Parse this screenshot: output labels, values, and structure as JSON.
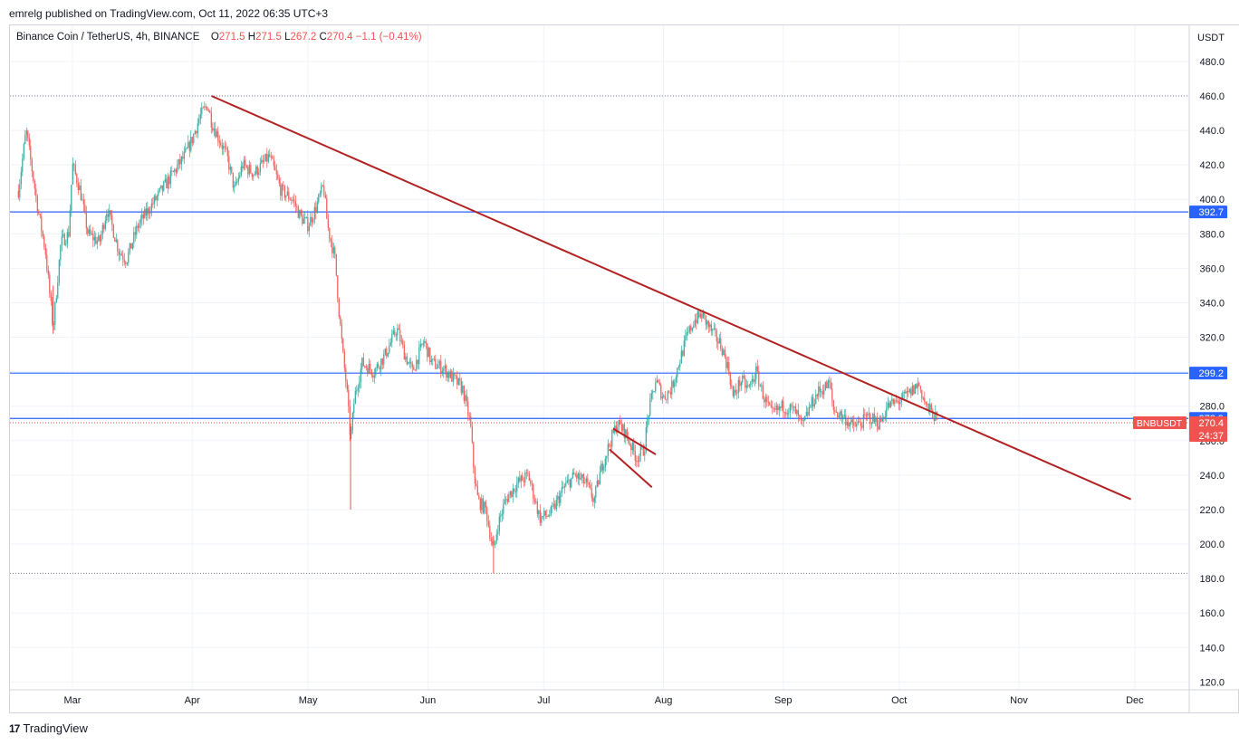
{
  "header": {
    "published": "emrelg published on TradingView.com, Oct 11, 2022 06:35 UTC+3"
  },
  "legend": {
    "symbol": "Binance Coin / TetherUS, 4h, BINANCE",
    "o_label": "O",
    "o_value": "271.5",
    "h_label": "H",
    "h_value": "271.5",
    "l_label": "L",
    "l_value": "267.2",
    "c_label": "C",
    "c_value": "270.4",
    "change": "−1.1 (−0.41%)"
  },
  "footer": {
    "brand": "TradingView"
  },
  "colors": {
    "up": "#26a69a",
    "down": "#ef5350",
    "trendline": "#b22222",
    "hline": "#2962ff",
    "axis_label_blue": "#2962ff",
    "price_label": "#ef5350"
  },
  "chart_data": {
    "type": "candlestick",
    "title": "Binance Coin / TetherUS, 4h, BINANCE",
    "currency": "USDT",
    "ylim": [
      110,
      495
    ],
    "y_ticks": [
      "120.0",
      "140.0",
      "160.0",
      "180.0",
      "200.0",
      "220.0",
      "240.0",
      "260.0",
      "280.0",
      "300.0",
      "320.0",
      "340.0",
      "360.0",
      "380.0",
      "400.0",
      "420.0",
      "440.0",
      "460.0",
      "480.0"
    ],
    "x_ticks": [
      "Mar",
      "Apr",
      "May",
      "Jun",
      "Jul",
      "Aug",
      "Sep",
      "Oct",
      "Nov",
      "Dec"
    ],
    "price_path": [
      {
        "t": "2022-02-15",
        "p": 405
      },
      {
        "t": "2022-02-17",
        "p": 440
      },
      {
        "t": "2022-02-20",
        "p": 395
      },
      {
        "t": "2022-02-22",
        "p": 370
      },
      {
        "t": "2022-02-24",
        "p": 325
      },
      {
        "t": "2022-02-26",
        "p": 375
      },
      {
        "t": "2022-02-28",
        "p": 380
      },
      {
        "t": "2022-03-01",
        "p": 420
      },
      {
        "t": "2022-03-03",
        "p": 405
      },
      {
        "t": "2022-03-05",
        "p": 380
      },
      {
        "t": "2022-03-08",
        "p": 375
      },
      {
        "t": "2022-03-10",
        "p": 395
      },
      {
        "t": "2022-03-13",
        "p": 370
      },
      {
        "t": "2022-03-15",
        "p": 365
      },
      {
        "t": "2022-03-18",
        "p": 385
      },
      {
        "t": "2022-03-21",
        "p": 395
      },
      {
        "t": "2022-03-24",
        "p": 405
      },
      {
        "t": "2022-03-27",
        "p": 415
      },
      {
        "t": "2022-03-30",
        "p": 425
      },
      {
        "t": "2022-04-01",
        "p": 435
      },
      {
        "t": "2022-04-03",
        "p": 448
      },
      {
        "t": "2022-04-05",
        "p": 455
      },
      {
        "t": "2022-04-06",
        "p": 445
      },
      {
        "t": "2022-04-08",
        "p": 435
      },
      {
        "t": "2022-04-10",
        "p": 425
      },
      {
        "t": "2022-04-12",
        "p": 405
      },
      {
        "t": "2022-04-14",
        "p": 420
      },
      {
        "t": "2022-04-17",
        "p": 415
      },
      {
        "t": "2022-04-19",
        "p": 420
      },
      {
        "t": "2022-04-21",
        "p": 425
      },
      {
        "t": "2022-04-24",
        "p": 405
      },
      {
        "t": "2022-04-27",
        "p": 400
      },
      {
        "t": "2022-04-29",
        "p": 390
      },
      {
        "t": "2022-05-01",
        "p": 385
      },
      {
        "t": "2022-05-03",
        "p": 395
      },
      {
        "t": "2022-05-05",
        "p": 408
      },
      {
        "t": "2022-05-06",
        "p": 385
      },
      {
        "t": "2022-05-08",
        "p": 365
      },
      {
        "t": "2022-05-09",
        "p": 335
      },
      {
        "t": "2022-05-10",
        "p": 310
      },
      {
        "t": "2022-05-11",
        "p": 290
      },
      {
        "t": "2022-05-12",
        "p": 260
      },
      {
        "t": "2022-05-13",
        "p": 285
      },
      {
        "t": "2022-05-15",
        "p": 305
      },
      {
        "t": "2022-05-18",
        "p": 300
      },
      {
        "t": "2022-05-21",
        "p": 310
      },
      {
        "t": "2022-05-24",
        "p": 325
      },
      {
        "t": "2022-05-26",
        "p": 310
      },
      {
        "t": "2022-05-28",
        "p": 300
      },
      {
        "t": "2022-05-31",
        "p": 318
      },
      {
        "t": "2022-06-02",
        "p": 305
      },
      {
        "t": "2022-06-05",
        "p": 302
      },
      {
        "t": "2022-06-08",
        "p": 295
      },
      {
        "t": "2022-06-10",
        "p": 290
      },
      {
        "t": "2022-06-12",
        "p": 270
      },
      {
        "t": "2022-06-13",
        "p": 240
      },
      {
        "t": "2022-06-14",
        "p": 225
      },
      {
        "t": "2022-06-16",
        "p": 220
      },
      {
        "t": "2022-06-18",
        "p": 195
      },
      {
        "t": "2022-06-19",
        "p": 210
      },
      {
        "t": "2022-06-21",
        "p": 225
      },
      {
        "t": "2022-06-24",
        "p": 235
      },
      {
        "t": "2022-06-27",
        "p": 240
      },
      {
        "t": "2022-06-30",
        "p": 215
      },
      {
        "t": "2022-07-03",
        "p": 218
      },
      {
        "t": "2022-07-06",
        "p": 232
      },
      {
        "t": "2022-07-09",
        "p": 240
      },
      {
        "t": "2022-07-12",
        "p": 235
      },
      {
        "t": "2022-07-14",
        "p": 225
      },
      {
        "t": "2022-07-16",
        "p": 245
      },
      {
        "t": "2022-07-18",
        "p": 258
      },
      {
        "t": "2022-07-20",
        "p": 270
      },
      {
        "t": "2022-07-22",
        "p": 265
      },
      {
        "t": "2022-07-25",
        "p": 250
      },
      {
        "t": "2022-07-27",
        "p": 255
      },
      {
        "t": "2022-07-28",
        "p": 275
      },
      {
        "t": "2022-07-30",
        "p": 295
      },
      {
        "t": "2022-08-01",
        "p": 285
      },
      {
        "t": "2022-08-03",
        "p": 290
      },
      {
        "t": "2022-08-05",
        "p": 305
      },
      {
        "t": "2022-08-07",
        "p": 320
      },
      {
        "t": "2022-08-09",
        "p": 330
      },
      {
        "t": "2022-08-11",
        "p": 333
      },
      {
        "t": "2022-08-13",
        "p": 325
      },
      {
        "t": "2022-08-16",
        "p": 315
      },
      {
        "t": "2022-08-18",
        "p": 300
      },
      {
        "t": "2022-08-19",
        "p": 285
      },
      {
        "t": "2022-08-21",
        "p": 295
      },
      {
        "t": "2022-08-23",
        "p": 290
      },
      {
        "t": "2022-08-25",
        "p": 300
      },
      {
        "t": "2022-08-27",
        "p": 285
      },
      {
        "t": "2022-08-29",
        "p": 275
      },
      {
        "t": "2022-09-01",
        "p": 280
      },
      {
        "t": "2022-09-04",
        "p": 277
      },
      {
        "t": "2022-09-06",
        "p": 268
      },
      {
        "t": "2022-09-08",
        "p": 280
      },
      {
        "t": "2022-09-10",
        "p": 288
      },
      {
        "t": "2022-09-13",
        "p": 293
      },
      {
        "t": "2022-09-14",
        "p": 278
      },
      {
        "t": "2022-09-17",
        "p": 273
      },
      {
        "t": "2022-09-19",
        "p": 268
      },
      {
        "t": "2022-09-21",
        "p": 270
      },
      {
        "t": "2022-09-23",
        "p": 274
      },
      {
        "t": "2022-09-26",
        "p": 270
      },
      {
        "t": "2022-09-28",
        "p": 280
      },
      {
        "t": "2022-10-01",
        "p": 283
      },
      {
        "t": "2022-10-04",
        "p": 288
      },
      {
        "t": "2022-10-06",
        "p": 293
      },
      {
        "t": "2022-10-08",
        "p": 280
      },
      {
        "t": "2022-10-10",
        "p": 275
      },
      {
        "t": "2022-10-11",
        "p": 270.4
      }
    ],
    "horizontal_levels": [
      {
        "price": 392.7,
        "label": "392.7",
        "style": "solid"
      },
      {
        "price": 299.2,
        "label": "299.2",
        "style": "solid"
      },
      {
        "price": 272.9,
        "label": "272.9",
        "style": "solid"
      },
      {
        "price": 460.0,
        "style": "dotted"
      },
      {
        "price": 183.0,
        "style": "dotted"
      },
      {
        "price": 270.4,
        "style": "dotted"
      }
    ],
    "trendlines": [
      {
        "t1": "2022-04-06",
        "p1": 460,
        "t2": "2022-11-30",
        "p2": 226
      },
      {
        "t1": "2022-07-19",
        "p1": 267,
        "t2": "2022-07-30",
        "p2": 252
      },
      {
        "t1": "2022-07-18",
        "p1": 255,
        "t2": "2022-07-29",
        "p2": 233
      }
    ],
    "last_price": {
      "symbol": "BNBUSDT",
      "price": "270.4",
      "countdown": "24:37"
    }
  }
}
